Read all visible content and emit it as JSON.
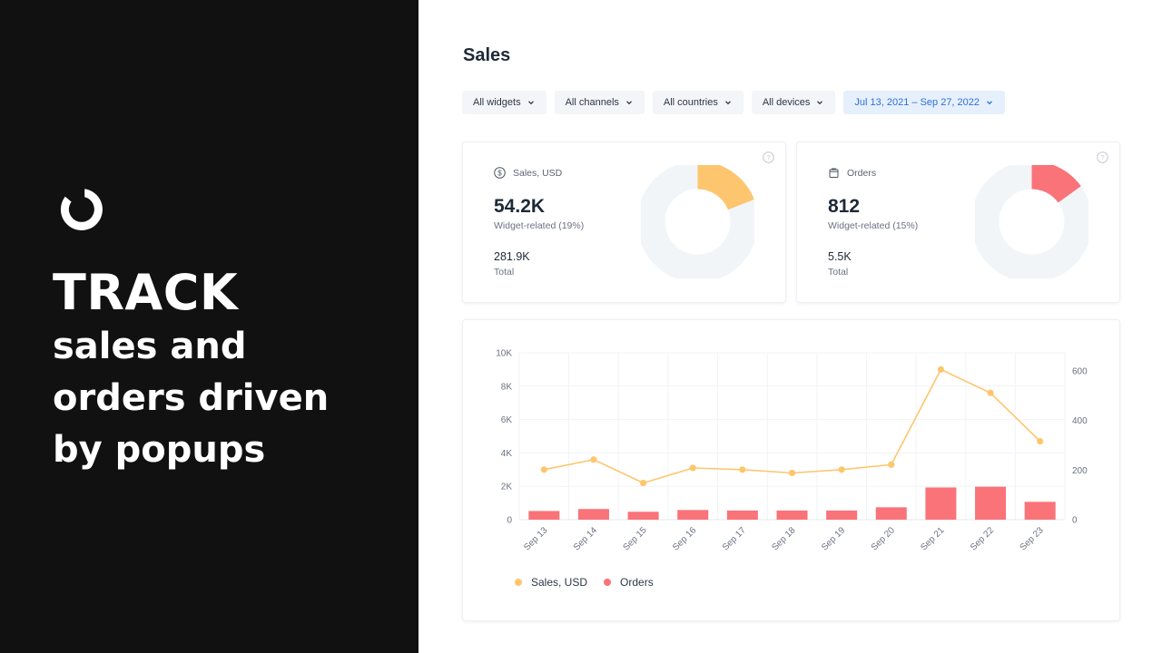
{
  "colors": {
    "sales": "#fdc66e",
    "orders": "#f97378",
    "donut_track": "#f2f5f8",
    "accent": "#2f6fd6"
  },
  "hero": {
    "title": "TRACK",
    "lines": [
      "sales and",
      "orders driven",
      "by popups"
    ]
  },
  "page": {
    "title": "Sales"
  },
  "filters": [
    {
      "label": "All widgets"
    },
    {
      "label": "All channels"
    },
    {
      "label": "All countries"
    },
    {
      "label": "All devices"
    },
    {
      "label": "Jul 13, 2021 – Sep 27, 2022"
    }
  ],
  "cards": {
    "sales": {
      "label": "Sales, USD",
      "icon": "dollar-icon",
      "value": "54.2K",
      "subtitle": "Widget-related (19%)",
      "total": "281.9K",
      "total_label": "Total",
      "fraction": 0.19
    },
    "orders": {
      "label": "Orders",
      "icon": "bag-icon",
      "value": "812",
      "subtitle": "Widget-related (15%)",
      "total": "5.5K",
      "total_label": "Total",
      "fraction": 0.15
    }
  },
  "chart_data": {
    "type": "bar+line",
    "categories": [
      "Sep 13",
      "Sep 14",
      "Sep 15",
      "Sep 16",
      "Sep 17",
      "Sep 18",
      "Sep 19",
      "Sep 20",
      "Sep 21",
      "Sep 22",
      "Sep 23"
    ],
    "series": [
      {
        "name": "Sales, USD",
        "type": "line",
        "axis": "left",
        "values": [
          3000,
          3600,
          2200,
          3100,
          3000,
          2800,
          3000,
          3300,
          9000,
          7600,
          4700
        ]
      },
      {
        "name": "Orders",
        "type": "bar",
        "axis": "right",
        "values": [
          35,
          43,
          32,
          39,
          37,
          37,
          37,
          50,
          130,
          133,
          72
        ]
      }
    ],
    "y_left": {
      "min": 0,
      "max": 10000,
      "ticks": [
        0,
        2000,
        4000,
        6000,
        8000,
        10000
      ],
      "tick_labels": [
        "0",
        "2K",
        "4K",
        "6K",
        "8K",
        "10K"
      ]
    },
    "y_right": {
      "min": 0,
      "max": 600,
      "ticks": [
        0,
        200,
        400,
        600
      ],
      "tick_labels": [
        "0",
        "200",
        "400",
        "600"
      ]
    },
    "grid": true,
    "legend": "bottom-left"
  }
}
